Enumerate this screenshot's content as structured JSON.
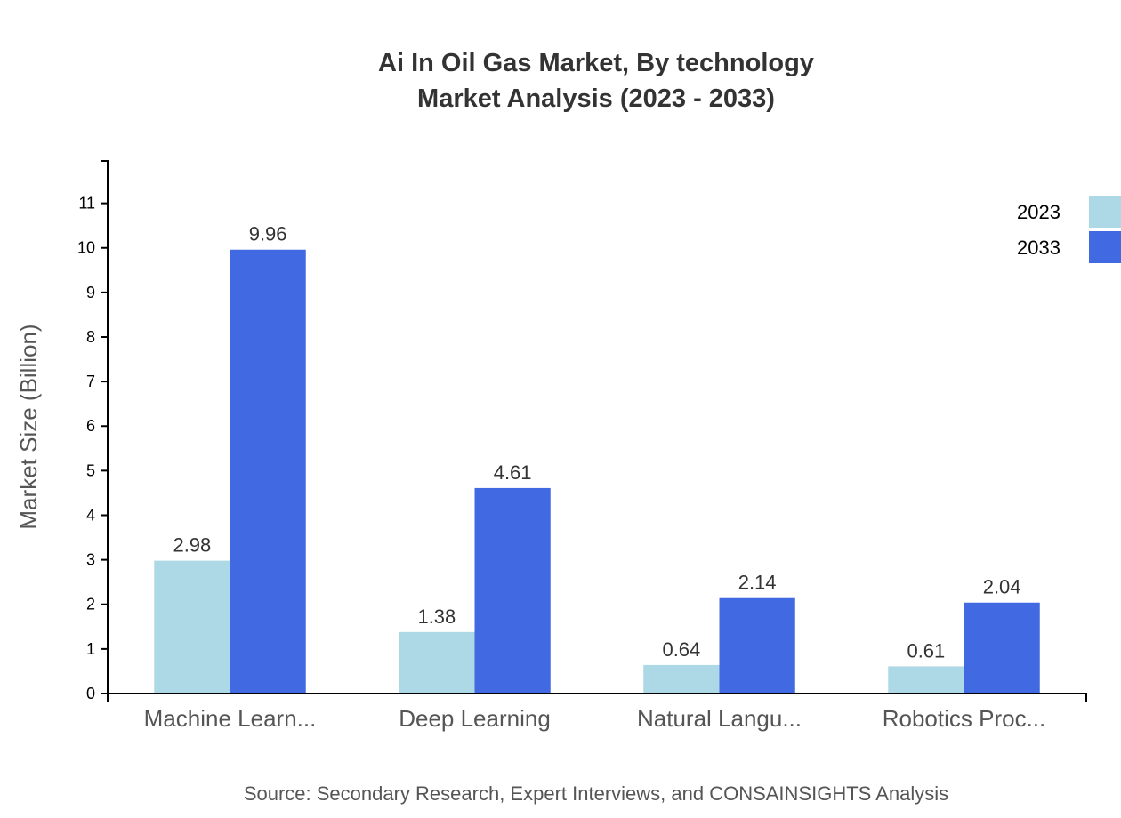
{
  "chart_data": {
    "type": "bar",
    "title": "Ai In Oil Gas Market, By technology",
    "subtitle": "Market Analysis (2023 - 2033)",
    "ylabel": "Market Size (Billion)",
    "xlabel": "",
    "categories": [
      "Machine Learn...",
      "Deep Learning",
      "Natural Langu...",
      "Robotics Proc..."
    ],
    "series": [
      {
        "name": "2023",
        "color": "#add8e6",
        "values": [
          2.98,
          1.38,
          0.64,
          0.61
        ]
      },
      {
        "name": "2033",
        "color": "#4169e1",
        "values": [
          9.96,
          4.61,
          2.14,
          2.04
        ]
      }
    ],
    "ylim": [
      0,
      11.95
    ],
    "yticks": [
      0,
      1,
      2,
      3,
      4,
      5,
      6,
      7,
      8,
      9,
      10,
      11
    ],
    "grid": false,
    "legend_placement": "top-right",
    "source": "Source: Secondary Research, Expert Interviews, and CONSAINSIGHTS Analysis"
  }
}
